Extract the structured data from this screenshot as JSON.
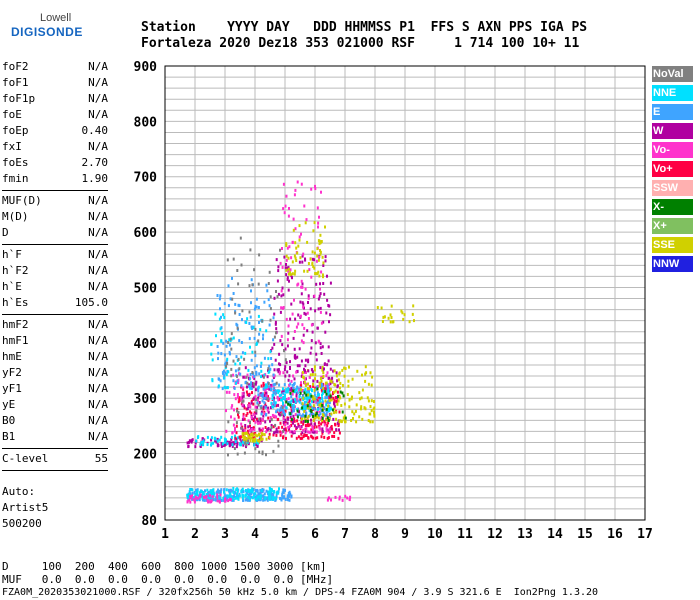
{
  "logo": {
    "top": "Lowell",
    "bottom": "DIGISONDE"
  },
  "header": {
    "labels_line": "Station    YYYY DAY   DDD HHMMSS P1  FFS S AXN PPS IGA PS",
    "values_line": "Fortaleza 2020 Dez18 353 021000 RSF     1 714 100 10+ 11"
  },
  "params": [
    {
      "group": [
        {
          "label": "foF2",
          "value": "N/A"
        },
        {
          "label": "foF1",
          "value": "N/A"
        },
        {
          "label": "foF1p",
          "value": "N/A"
        },
        {
          "label": "foE",
          "value": "N/A"
        },
        {
          "label": "foEp",
          "value": "0.40"
        },
        {
          "label": "fxI",
          "value": "N/A"
        },
        {
          "label": "foEs",
          "value": "2.70"
        },
        {
          "label": "fmin",
          "value": "1.90"
        }
      ]
    },
    {
      "group": [
        {
          "label": "MUF(D)",
          "value": "N/A"
        },
        {
          "label": "M(D)",
          "value": "N/A"
        },
        {
          "label": "D",
          "value": "N/A"
        }
      ]
    },
    {
      "group": [
        {
          "label": "h`F",
          "value": "N/A"
        },
        {
          "label": "h`F2",
          "value": "N/A"
        },
        {
          "label": "h`E",
          "value": "N/A"
        },
        {
          "label": "h`Es",
          "value": "105.0"
        }
      ]
    },
    {
      "group": [
        {
          "label": "hmF2",
          "value": "N/A"
        },
        {
          "label": "hmF1",
          "value": "N/A"
        },
        {
          "label": "hmE",
          "value": "N/A"
        },
        {
          "label": "yF2",
          "value": "N/A"
        },
        {
          "label": "yF1",
          "value": "N/A"
        },
        {
          "label": "yE",
          "value": "N/A"
        },
        {
          "label": "B0",
          "value": "N/A"
        },
        {
          "label": "B1",
          "value": "N/A"
        }
      ]
    },
    {
      "group": [
        {
          "label": "C-level",
          "value": "55"
        }
      ]
    }
  ],
  "auto": {
    "line1": "Auto:",
    "line2": "Artist5",
    "line3": "500200"
  },
  "footer": {
    "d_line": "D     100  200  400  600  800 1000 1500 3000 [km]",
    "muf_line": "MUF   0.0  0.0  0.0  0.0  0.0  0.0  0.0  0.0 [MHz]",
    "info_line": "FZA0M_2020353021000.RSF / 320fx256h 50 kHz 5.0 km / DPS-4 FZA0M 904 / 3.9 S 321.6 E  Ion2Png 1.3.20"
  },
  "legend": [
    {
      "label": "NoVal",
      "color": "#808080"
    },
    {
      "label": "NNE",
      "color": "#00e0ff"
    },
    {
      "label": "E",
      "color": "#3fa4ff"
    },
    {
      "label": "W",
      "color": "#b000a0"
    },
    {
      "label": "Vo-",
      "color": "#ff33cc"
    },
    {
      "label": "Vo+",
      "color": "#ff0044"
    },
    {
      "label": "SSW",
      "color": "#ffb0b0"
    },
    {
      "label": "X-",
      "color": "#008000"
    },
    {
      "label": "X+",
      "color": "#80c060"
    },
    {
      "label": "SSE",
      "color": "#d0d000"
    },
    {
      "label": "NNW",
      "color": "#2020e0"
    }
  ],
  "chart_data": {
    "type": "scatter",
    "title": "",
    "xlabel": "",
    "ylabel": "",
    "xlim": [
      1,
      17
    ],
    "ylim": [
      80,
      900
    ],
    "x_ticks": [
      1,
      2,
      3,
      4,
      5,
      6,
      7,
      8,
      9,
      10,
      11,
      12,
      13,
      14,
      15,
      16,
      17
    ],
    "y_ticks": [
      80,
      200,
      300,
      400,
      500,
      600,
      700,
      800,
      900
    ],
    "grid": true,
    "clusters": [
      {
        "series": "E",
        "x_range": [
          1.7,
          5.2
        ],
        "y_range": [
          118,
          138
        ],
        "count": 260
      },
      {
        "series": "NNE",
        "x_range": [
          1.7,
          4.8
        ],
        "y_range": [
          120,
          140
        ],
        "count": 120
      },
      {
        "series": "Vo-",
        "x_range": [
          1.7,
          3.2
        ],
        "y_range": [
          115,
          130
        ],
        "count": 40
      },
      {
        "series": "Vo-",
        "x_range": [
          6.2,
          7.2
        ],
        "y_range": [
          118,
          126
        ],
        "count": 12
      },
      {
        "series": "W",
        "x_range": [
          1.7,
          4.2
        ],
        "y_range": [
          215,
          230
        ],
        "count": 70
      },
      {
        "series": "NNE",
        "x_range": [
          2.0,
          4.2
        ],
        "y_range": [
          218,
          235
        ],
        "count": 50
      },
      {
        "series": "Vo+",
        "x_range": [
          3.3,
          6.8
        ],
        "y_range": [
          230,
          330
        ],
        "count": 260
      },
      {
        "series": "W",
        "x_range": [
          3.5,
          6.8
        ],
        "y_range": [
          240,
          360
        ],
        "count": 200
      },
      {
        "series": "Vo-",
        "x_range": [
          3.0,
          6.5
        ],
        "y_range": [
          240,
          350
        ],
        "count": 160
      },
      {
        "series": "E",
        "x_range": [
          4.0,
          6.5
        ],
        "y_range": [
          270,
          330
        ],
        "count": 160
      },
      {
        "series": "NNE",
        "x_range": [
          4.5,
          6.5
        ],
        "y_range": [
          280,
          320
        ],
        "count": 80
      },
      {
        "series": "SSE",
        "x_range": [
          5.5,
          8.0
        ],
        "y_range": [
          260,
          360
        ],
        "count": 160
      },
      {
        "series": "SSE",
        "x_range": [
          3.5,
          4.5
        ],
        "y_range": [
          225,
          240
        ],
        "count": 40
      },
      {
        "series": "X-",
        "x_range": [
          5.0,
          7.0
        ],
        "y_range": [
          260,
          320
        ],
        "count": 40
      },
      {
        "series": "W",
        "x_range": [
          4.5,
          6.5
        ],
        "y_range": [
          350,
          560
        ],
        "count": 140
      },
      {
        "series": "Vo-",
        "x_range": [
          4.8,
          6.2
        ],
        "y_range": [
          400,
          700
        ],
        "count": 80
      },
      {
        "series": "E",
        "x_range": [
          2.7,
          4.6
        ],
        "y_range": [
          320,
          520
        ],
        "count": 120
      },
      {
        "series": "NNE",
        "x_range": [
          2.5,
          4.5
        ],
        "y_range": [
          320,
          460
        ],
        "count": 60
      },
      {
        "series": "SSE",
        "x_range": [
          5.0,
          6.3
        ],
        "y_range": [
          520,
          620
        ],
        "count": 60
      },
      {
        "series": "SSE",
        "x_range": [
          8.0,
          9.3
        ],
        "y_range": [
          440,
          470
        ],
        "count": 20
      },
      {
        "series": "NoVal",
        "x_range": [
          3.0,
          5.0
        ],
        "y_range": [
          200,
          600
        ],
        "count": 90
      }
    ]
  }
}
